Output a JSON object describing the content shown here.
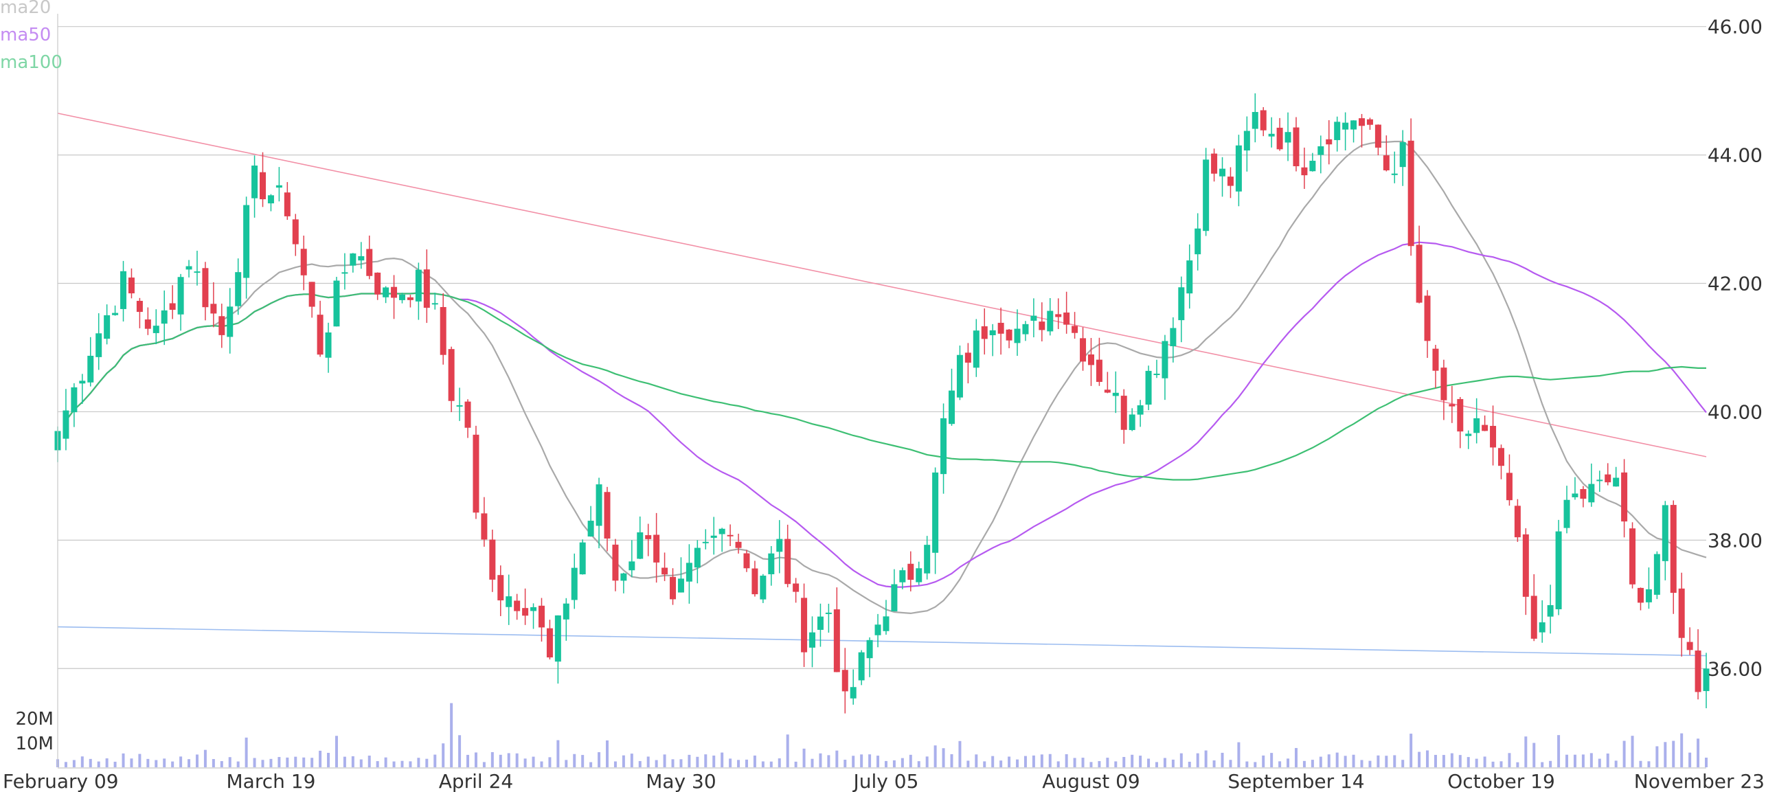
{
  "colors": {
    "up": "#17c39c",
    "down": "#e2404f",
    "ma20": "#a9a9a9",
    "ma50": "#b65af0",
    "ma100": "#3dbf73",
    "volume": "#aab0ec",
    "grid": "#c8c8c8",
    "trend_down": "#f28fa6",
    "trend_support": "#9bbcf0",
    "axis_text": "#333333"
  },
  "legend": [
    {
      "label": "ma20",
      "color": "#c8c8c8"
    },
    {
      "label": "ma50",
      "color": "#c48cf2"
    },
    {
      "label": "ma100",
      "color": "#7ed6a5"
    }
  ],
  "chart_data": {
    "type": "candlestick",
    "title": "",
    "xlabel": "",
    "ylabel": "",
    "ylim": [
      35.5,
      46.2
    ],
    "y_ticks": [
      "36.00",
      "38.00",
      "40.00",
      "42.00",
      "44.00",
      "46.00"
    ],
    "volume_ticks": [
      "10M",
      "20M"
    ],
    "volume_lim": [
      0,
      27
    ],
    "x_tick_labels": [
      {
        "label": "February 09",
        "index": 0
      },
      {
        "label": "March 19",
        "index": 26
      },
      {
        "label": "April 24",
        "index": 51
      },
      {
        "label": "May 30",
        "index": 76
      },
      {
        "label": "July 05",
        "index": 101
      },
      {
        "label": "August 09",
        "index": 126
      },
      {
        "label": "September 14",
        "index": 151
      },
      {
        "label": "October 19",
        "index": 176
      },
      {
        "label": "November 23",
        "index": 201
      }
    ],
    "n_bars": 202,
    "anchors": [
      [
        0,
        39.7
      ],
      [
        4,
        41.0
      ],
      [
        8,
        42.0
      ],
      [
        12,
        41.2
      ],
      [
        16,
        42.4
      ],
      [
        20,
        41.2
      ],
      [
        24,
        43.6
      ],
      [
        28,
        43.2
      ],
      [
        32,
        41.0
      ],
      [
        36,
        42.6
      ],
      [
        40,
        41.8
      ],
      [
        44,
        42.0
      ],
      [
        46,
        41.5
      ],
      [
        48,
        40.3
      ],
      [
        50,
        39.8
      ],
      [
        51,
        38.3
      ],
      [
        54,
        37.2
      ],
      [
        58,
        37.0
      ],
      [
        60,
        36.1
      ],
      [
        63,
        37.6
      ],
      [
        66,
        38.7
      ],
      [
        68,
        37.4
      ],
      [
        72,
        38.2
      ],
      [
        75,
        36.9
      ],
      [
        78,
        37.7
      ],
      [
        82,
        38.3
      ],
      [
        85,
        37.3
      ],
      [
        88,
        37.9
      ],
      [
        91,
        36.5
      ],
      [
        94,
        36.9
      ],
      [
        96,
        35.4
      ],
      [
        99,
        36.4
      ],
      [
        101,
        37.0
      ],
      [
        104,
        37.5
      ],
      [
        106,
        38.1
      ],
      [
        108,
        39.8
      ],
      [
        110,
        40.7
      ],
      [
        114,
        41.5
      ],
      [
        118,
        41.2
      ],
      [
        122,
        41.7
      ],
      [
        125,
        41.0
      ],
      [
        128,
        40.4
      ],
      [
        130,
        39.9
      ],
      [
        134,
        40.8
      ],
      [
        136,
        41.5
      ],
      [
        138,
        42.4
      ],
      [
        140,
        43.8
      ],
      [
        143,
        43.6
      ],
      [
        146,
        44.6
      ],
      [
        149,
        44.3
      ],
      [
        152,
        43.9
      ],
      [
        155,
        44.4
      ],
      [
        158,
        44.6
      ],
      [
        161,
        44.1
      ],
      [
        162,
        43.8
      ],
      [
        164,
        44.0
      ],
      [
        165,
        42.5
      ],
      [
        167,
        40.9
      ],
      [
        169,
        40.2
      ],
      [
        171,
        39.5
      ],
      [
        173,
        39.9
      ],
      [
        175,
        39.3
      ],
      [
        177,
        38.6
      ],
      [
        178,
        37.8
      ],
      [
        180,
        36.3
      ],
      [
        182,
        37.2
      ],
      [
        184,
        38.6
      ],
      [
        186,
        38.7
      ],
      [
        188,
        38.8
      ],
      [
        190,
        39.0
      ],
      [
        192,
        37.2
      ],
      [
        194,
        37.3
      ],
      [
        196,
        38.3
      ],
      [
        197,
        37.1
      ],
      [
        199,
        36.2
      ],
      [
        200,
        35.8
      ],
      [
        201,
        36.0
      ]
    ],
    "series": [
      {
        "name": "ma20",
        "values": []
      },
      {
        "name": "ma50",
        "values": []
      },
      {
        "name": "ma100",
        "values": []
      }
    ],
    "trendlines": [
      {
        "from": [
          0,
          44.65
        ],
        "to": [
          201,
          39.3
        ]
      },
      {
        "from": [
          0,
          36.65
        ],
        "to": [
          201,
          36.2
        ]
      }
    ],
    "legend_position": "top-left",
    "grid": true
  }
}
